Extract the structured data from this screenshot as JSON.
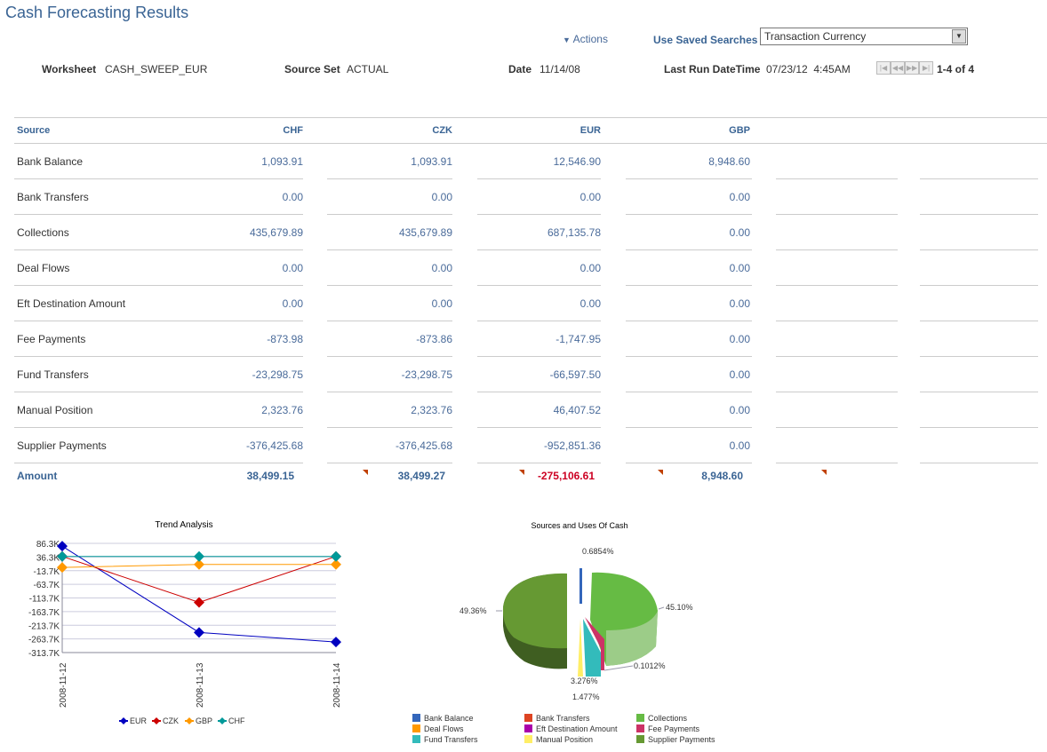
{
  "page": {
    "title": "Cash Forecasting Results"
  },
  "toolbar": {
    "actions": "Actions",
    "saved_searches_label": "Use Saved Searches",
    "saved_search_value": "Transaction Currency"
  },
  "info": {
    "worksheet_label": "Worksheet",
    "worksheet": "CASH_SWEEP_EUR",
    "source_set_label": "Source Set",
    "source_set": "ACTUAL",
    "date_label": "Date",
    "date": "11/14/08",
    "last_run_label": "Last Run DateTime",
    "last_run": "07/23/12  4:45AM",
    "pager": "1-4 of 4"
  },
  "table": {
    "headers": [
      "Source",
      "CHF",
      "CZK",
      "EUR",
      "GBP"
    ],
    "rows": [
      {
        "source": "Bank Balance",
        "values": [
          "1,093.91",
          "1,093.91",
          "12,546.90",
          "8,948.60"
        ]
      },
      {
        "source": "Bank Transfers",
        "values": [
          "0.00",
          "0.00",
          "0.00",
          "0.00"
        ]
      },
      {
        "source": "Collections",
        "values": [
          "435,679.89",
          "435,679.89",
          "687,135.78",
          "0.00"
        ]
      },
      {
        "source": "Deal Flows",
        "values": [
          "0.00",
          "0.00",
          "0.00",
          "0.00"
        ]
      },
      {
        "source": "Eft Destination Amount",
        "values": [
          "0.00",
          "0.00",
          "0.00",
          "0.00"
        ]
      },
      {
        "source": "Fee Payments",
        "values": [
          "-873.98",
          "-873.86",
          "-1,747.95",
          "0.00"
        ]
      },
      {
        "source": "Fund Transfers",
        "values": [
          "-23,298.75",
          "-23,298.75",
          "-66,597.50",
          "0.00"
        ]
      },
      {
        "source": "Manual Position",
        "values": [
          "2,323.76",
          "2,323.76",
          "46,407.52",
          "0.00"
        ]
      },
      {
        "source": "Supplier Payments",
        "values": [
          "-376,425.68",
          "-376,425.68",
          "-952,851.36",
          "0.00"
        ]
      }
    ],
    "total": {
      "label": "Amount",
      "values": [
        "38,499.15",
        "38,499.27",
        "-275,106.61",
        "8,948.60"
      ]
    }
  },
  "chart_data": [
    {
      "type": "line",
      "title": "Trend Analysis",
      "x": [
        "2008-11-12",
        "2008-11-13",
        "2008-11-14"
      ],
      "yticks": [
        "86.3K",
        "36.3K",
        "-13.7K",
        "-63.7K",
        "-113.7K",
        "-163.7K",
        "-213.7K",
        "-263.7K",
        "-313.7K"
      ],
      "ylim": [
        -313700,
        86300
      ],
      "grid": true,
      "legend": "bottom",
      "series": [
        {
          "name": "EUR",
          "color": "#0000c0",
          "values": [
            76000,
            -240000,
            -275107
          ]
        },
        {
          "name": "CZK",
          "color": "#cc0000",
          "values": [
            38499,
            -130000,
            38499
          ]
        },
        {
          "name": "GBP",
          "color": "#ff9900",
          "values": [
            -2000,
            8949,
            8949
          ]
        },
        {
          "name": "CHF",
          "color": "#009999",
          "values": [
            38499,
            38499,
            38499
          ]
        }
      ]
    },
    {
      "type": "pie",
      "title": "Sources and Uses Of Cash",
      "legend": "bottom",
      "slices": [
        {
          "name": "Bank Balance",
          "color": "#3366bb",
          "label": "0.6854%"
        },
        {
          "name": "Bank Transfers",
          "color": "#dd4422",
          "label": ""
        },
        {
          "name": "Collections",
          "color": "#66bb44",
          "label": "45.10%"
        },
        {
          "name": "Deal Flows",
          "color": "#ff9900",
          "label": ""
        },
        {
          "name": "Eft Destination Amount",
          "color": "#aa00aa",
          "label": "0.1012%"
        },
        {
          "name": "Fee Payments",
          "color": "#cc3366",
          "label": ""
        },
        {
          "name": "Fund Transfers",
          "color": "#33bbbb",
          "label": "3.276%"
        },
        {
          "name": "Manual Position",
          "color": "#ffee66",
          "label": "1.477%"
        },
        {
          "name": "Supplier Payments",
          "color": "#669933",
          "label": "49.36%"
        }
      ]
    }
  ]
}
